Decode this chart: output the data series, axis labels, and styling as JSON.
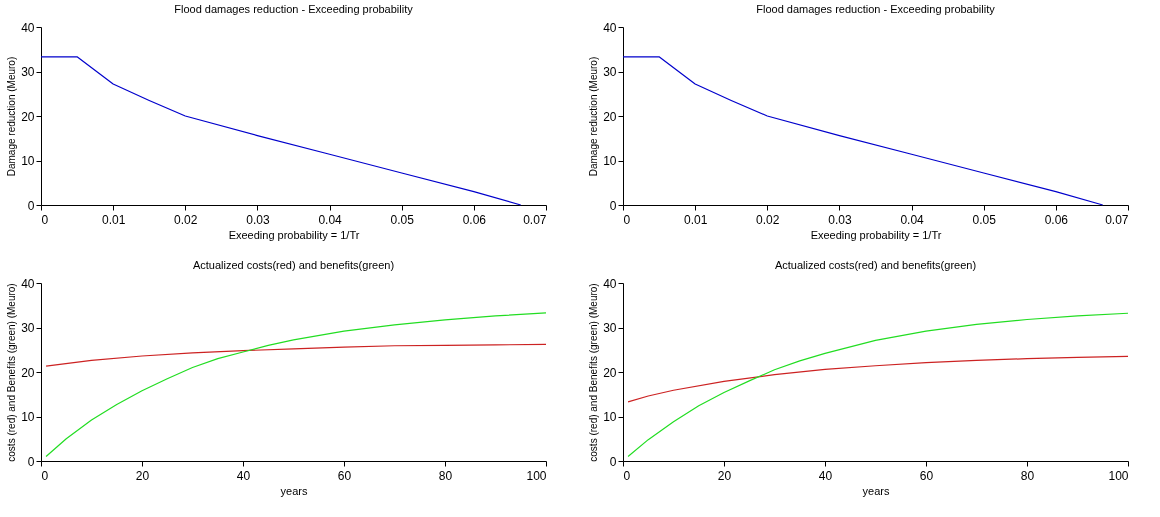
{
  "chart_data": [
    {
      "type": "line",
      "title": "Flood damages reduction - Exceeding probability",
      "xlabel": "Exeeding probability = 1/Tr",
      "ylabel": "Damage reduction  (Meuro)",
      "xlim": [
        0,
        0.07
      ],
      "xticks": [
        0,
        0.01,
        0.02,
        0.03,
        0.04,
        0.05,
        0.06,
        0.07
      ],
      "ylim": [
        0,
        40
      ],
      "yticks": [
        0,
        10,
        20,
        30,
        40
      ],
      "series": [
        {
          "color": "#0000cc",
          "x": [
            0,
            0.005,
            0.01,
            0.015,
            0.02,
            0.03,
            0.04,
            0.05,
            0.06,
            0.0665
          ],
          "values": [
            33.3,
            33.3,
            27.2,
            23.5,
            20,
            15.6,
            11.4,
            7.2,
            3,
            0
          ]
        }
      ]
    },
    {
      "type": "line",
      "title": "Flood damages reduction - Exceeding probability",
      "xlabel": "Exeeding probability = 1/Tr",
      "ylabel": "Damage reduction  (Meuro)",
      "xlim": [
        0,
        0.07
      ],
      "xticks": [
        0,
        0.01,
        0.02,
        0.03,
        0.04,
        0.05,
        0.06,
        0.07
      ],
      "ylim": [
        0,
        40
      ],
      "yticks": [
        0,
        10,
        20,
        30,
        40
      ],
      "series": [
        {
          "color": "#0000cc",
          "x": [
            0,
            0.005,
            0.01,
            0.015,
            0.02,
            0.03,
            0.04,
            0.05,
            0.06,
            0.0665
          ],
          "values": [
            33.3,
            33.3,
            27.2,
            23.5,
            20,
            15.6,
            11.4,
            7.2,
            3,
            0
          ]
        }
      ]
    },
    {
      "type": "line",
      "title": "Actualized costs(red) and benefits(green)",
      "xlabel": "years",
      "ylabel": "costs (red) and Benefits (green) (Meuro)",
      "xlim": [
        0,
        100
      ],
      "xticks": [
        0,
        20,
        40,
        60,
        80,
        100
      ],
      "ylim": [
        0,
        40
      ],
      "yticks": [
        0,
        10,
        20,
        30,
        40
      ],
      "series": [
        {
          "color": "#cc2222",
          "x": [
            1,
            10,
            20,
            30,
            40,
            50,
            60,
            70,
            80,
            90,
            100
          ],
          "values": [
            21.3,
            22.6,
            23.6,
            24.3,
            24.8,
            25.2,
            25.6,
            25.9,
            26.0,
            26.1,
            26.2
          ]
        },
        {
          "color": "#22dd22",
          "x": [
            1,
            5,
            10,
            15,
            20,
            25,
            30,
            35,
            40,
            45,
            50,
            60,
            70,
            80,
            90,
            100
          ],
          "values": [
            1,
            5,
            9.2,
            12.7,
            15.8,
            18.5,
            21,
            23,
            24.5,
            26,
            27.2,
            29.2,
            30.6,
            31.7,
            32.6,
            33.3
          ]
        }
      ]
    },
    {
      "type": "line",
      "title": "Actualized costs(red) and benefits(green)",
      "xlabel": "years",
      "ylabel": "costs (red) and Benefits (green) (Meuro)",
      "xlim": [
        0,
        100
      ],
      "xticks": [
        0,
        20,
        40,
        60,
        80,
        100
      ],
      "ylim": [
        0,
        40
      ],
      "yticks": [
        0,
        10,
        20,
        30,
        40
      ],
      "series": [
        {
          "color": "#cc2222",
          "x": [
            1,
            5,
            10,
            20,
            30,
            40,
            50,
            60,
            70,
            80,
            90,
            100
          ],
          "values": [
            13.3,
            14.6,
            15.9,
            17.9,
            19.4,
            20.6,
            21.4,
            22.1,
            22.6,
            23,
            23.3,
            23.5
          ]
        },
        {
          "color": "#22dd22",
          "x": [
            1,
            5,
            10,
            15,
            20,
            25,
            30,
            35,
            40,
            50,
            60,
            70,
            80,
            90,
            100
          ],
          "values": [
            1,
            4.8,
            8.8,
            12.4,
            15.4,
            18,
            20.5,
            22.5,
            24.2,
            27.1,
            29.2,
            30.7,
            31.8,
            32.6,
            33.2
          ]
        }
      ]
    }
  ]
}
